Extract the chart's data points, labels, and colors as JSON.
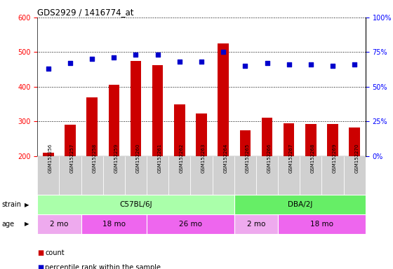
{
  "title": "GDS2929 / 1416774_at",
  "samples": [
    "GSM152256",
    "GSM152257",
    "GSM152258",
    "GSM152259",
    "GSM152260",
    "GSM152261",
    "GSM152262",
    "GSM152263",
    "GSM152264",
    "GSM152265",
    "GSM152266",
    "GSM152267",
    "GSM152268",
    "GSM152269",
    "GSM152270"
  ],
  "counts": [
    210,
    290,
    370,
    405,
    475,
    462,
    350,
    322,
    525,
    275,
    310,
    295,
    293,
    293,
    283
  ],
  "percentile_ranks": [
    63,
    67,
    70,
    71,
    73,
    73,
    68,
    68,
    75,
    65,
    67,
    66,
    66,
    65,
    66
  ],
  "bar_color": "#cc0000",
  "dot_color": "#0000cc",
  "ylim_left": [
    200,
    600
  ],
  "ylim_right": [
    0,
    100
  ],
  "yticks_left": [
    200,
    300,
    400,
    500,
    600
  ],
  "yticks_right": [
    0,
    25,
    50,
    75,
    100
  ],
  "strain_groups": [
    {
      "label": "C57BL/6J",
      "start": 0,
      "end": 9,
      "color": "#aaffaa"
    },
    {
      "label": "DBA/2J",
      "start": 9,
      "end": 15,
      "color": "#66ee66"
    }
  ],
  "age_groups": [
    {
      "label": "2 mo",
      "start": 0,
      "end": 2,
      "color": "#eeaaee"
    },
    {
      "label": "18 mo",
      "start": 2,
      "end": 5,
      "color": "#ee66ee"
    },
    {
      "label": "26 mo",
      "start": 5,
      "end": 9,
      "color": "#ee66ee"
    },
    {
      "label": "2 mo",
      "start": 9,
      "end": 11,
      "color": "#eeaaee"
    },
    {
      "label": "18 mo",
      "start": 11,
      "end": 15,
      "color": "#ee66ee"
    }
  ],
  "legend_count_color": "#cc0000",
  "legend_pct_color": "#0000cc",
  "background_color": "#ffffff",
  "plot_bg_color": "#ffffff",
  "tick_label_bg": "#d0d0d0"
}
